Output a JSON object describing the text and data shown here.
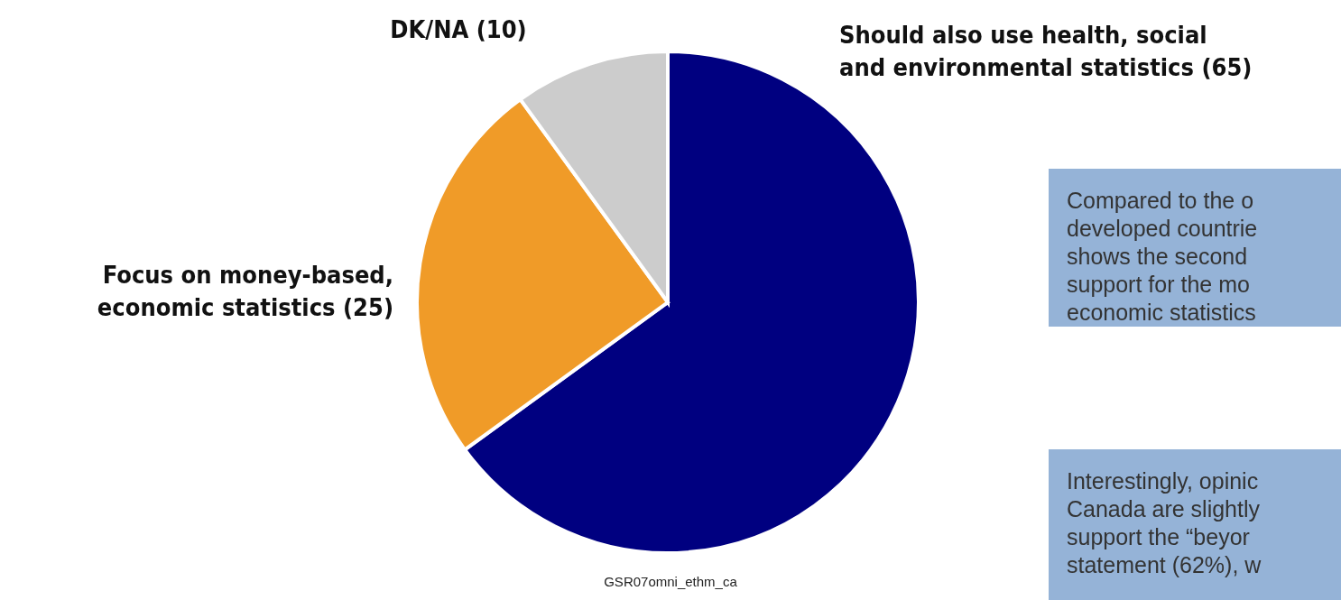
{
  "chart_data": {
    "type": "pie",
    "categories": [
      "Should also use health, social and environmental statistics (65)",
      "Focus on money-based, economic statistics (25)",
      "DK/NA (10)"
    ],
    "values": [
      65,
      25,
      10
    ],
    "colors": [
      "#000080",
      "#f09b28",
      "#cccccc"
    ],
    "legend": false,
    "annotations": [
      "GSR07omni_ethm_ca",
      "Compared to the o\ndeveloped countrie\nshows the second\nsupport for the mo\neconomic statistics",
      "Interestingly, opinic\nCanada are slightly\nsupport the “beyor\nstatement (62%), w"
    ]
  }
}
